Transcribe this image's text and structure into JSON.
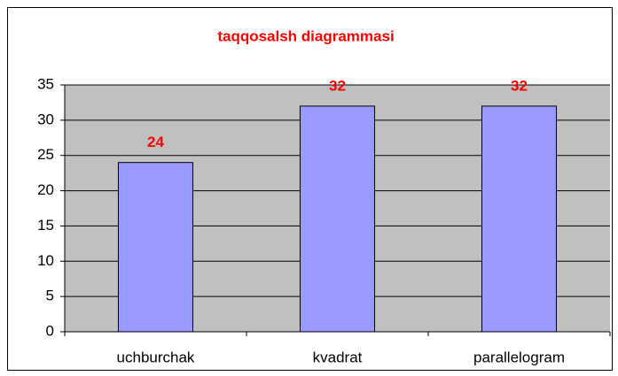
{
  "chart_data": {
    "type": "bar",
    "title": "taqqosalsh diagrammasi",
    "categories": [
      "uchburchak",
      "kvadrat",
      "parallelogram"
    ],
    "values": [
      24,
      32,
      32
    ],
    "color": "#9999ff",
    "ylim": [
      0,
      35
    ],
    "yticks": [
      0,
      5,
      10,
      15,
      20,
      25,
      30,
      35
    ],
    "grid": true
  }
}
